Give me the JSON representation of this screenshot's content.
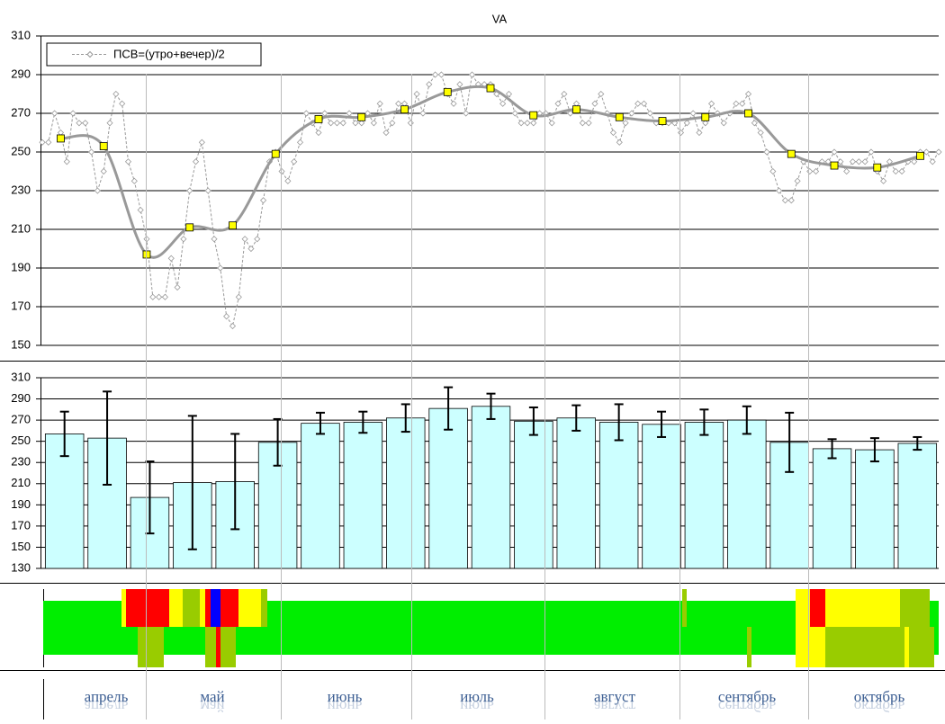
{
  "chart_data": [
    {
      "type": "line",
      "title": "VA",
      "ylim": [
        150,
        310
      ],
      "yticks": [
        150,
        170,
        190,
        210,
        230,
        250,
        270,
        290,
        310
      ],
      "grid": true,
      "legend": "top-left",
      "series": [
        {
          "name": "ПСВ=(утро+вечер)/2",
          "color": "#999999",
          "values": [
            255,
            255,
            270,
            260,
            245,
            270,
            265,
            265,
            250,
            230,
            240,
            265,
            280,
            275,
            245,
            235,
            220,
            205,
            175,
            175,
            175,
            195,
            180,
            205,
            230,
            245,
            255,
            230,
            205,
            190,
            165,
            160,
            175,
            205,
            200,
            205,
            225,
            245,
            250,
            240,
            235,
            245,
            255,
            270,
            265,
            260,
            270,
            265,
            265,
            265,
            270,
            265,
            265,
            270,
            265,
            275,
            260,
            265,
            275,
            275,
            265,
            280,
            270,
            285,
            290,
            290,
            280,
            275,
            285,
            270,
            290,
            285,
            285,
            285,
            280,
            275,
            280,
            270,
            265,
            265,
            265,
            270,
            270,
            265,
            275,
            280,
            270,
            275,
            265,
            265,
            275,
            280,
            270,
            260,
            255,
            265,
            270,
            275,
            275,
            270,
            265,
            265,
            265,
            265,
            260,
            265,
            270,
            260,
            265,
            275,
            270,
            265,
            270,
            275,
            275,
            280,
            265,
            260,
            250,
            240,
            230,
            225,
            225,
            235,
            245,
            240,
            240,
            245,
            245,
            250,
            245,
            240,
            245,
            245,
            245,
            250,
            240,
            235,
            245,
            240,
            240,
            245,
            245,
            250,
            250,
            245,
            250
          ]
        },
        {
          "color": "#ffff00",
          "values": [
            257,
            253,
            197,
            211,
            212,
            249,
            267,
            268,
            272,
            281,
            283,
            269,
            272,
            268,
            266,
            268,
            270,
            249,
            243,
            242,
            248
          ]
        }
      ]
    },
    {
      "type": "bar",
      "ylim": [
        130,
        310
      ],
      "yticks": [
        130,
        150,
        170,
        190,
        210,
        230,
        250,
        270,
        290,
        310
      ],
      "color": "#ccffff",
      "values": [
        257,
        253,
        197,
        211,
        212,
        249,
        267,
        268,
        272,
        281,
        283,
        269,
        272,
        268,
        266,
        268,
        270,
        249,
        243,
        242,
        248
      ],
      "errors": [
        21,
        44,
        34,
        63,
        45,
        22,
        10,
        10,
        13,
        20,
        12,
        13,
        12,
        17,
        12,
        12,
        13,
        28,
        9,
        11,
        6
      ]
    }
  ],
  "months": [
    "апрель",
    "май",
    "июнь",
    "июль",
    "август",
    "сентябрь",
    "октябрь"
  ]
}
